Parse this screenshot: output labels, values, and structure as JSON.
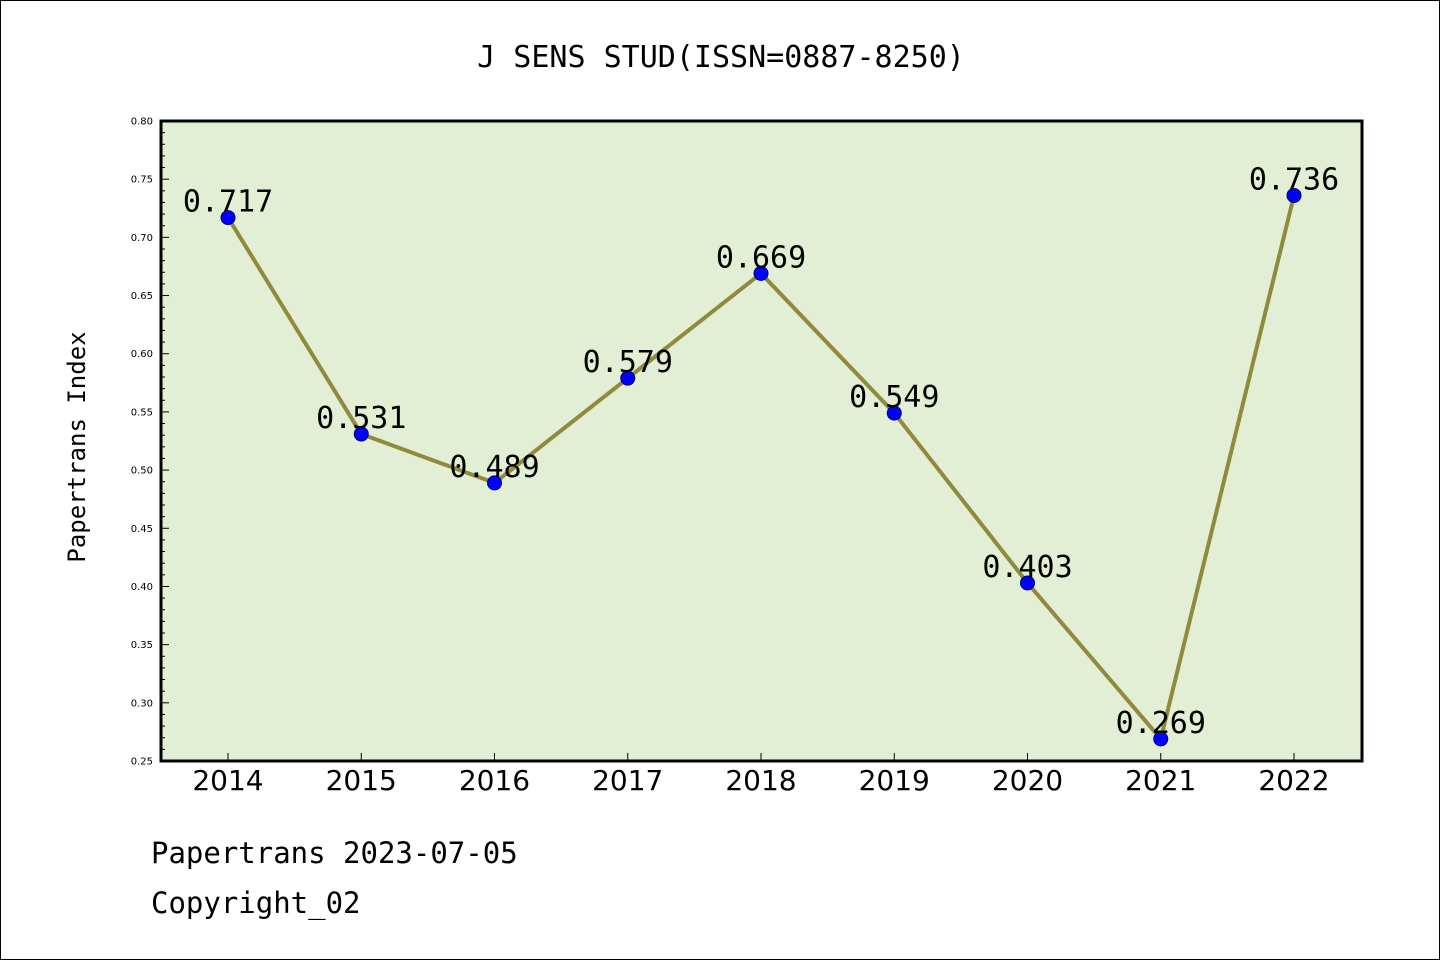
{
  "chart_data": {
    "type": "line",
    "title": "J SENS STUD(ISSN=0887-8250)",
    "xlabel": "",
    "ylabel": "Papertrans Index",
    "categories": [
      "2014",
      "2015",
      "2016",
      "2017",
      "2018",
      "2019",
      "2020",
      "2021",
      "2022"
    ],
    "series": [
      {
        "values": [
          0.717,
          0.531,
          0.489,
          0.579,
          0.669,
          0.549,
          0.403,
          0.269,
          0.736
        ],
        "labels": [
          "0.717",
          "0.531",
          "0.489",
          "0.579",
          "0.669",
          "0.549",
          "0.403",
          "0.269",
          "0.736"
        ]
      }
    ],
    "ylim": [
      0.25,
      0.8
    ],
    "yticks": [
      "0.25",
      "0.30",
      "0.35",
      "0.40",
      "0.45",
      "0.50",
      "0.55",
      "0.60",
      "0.65",
      "0.70",
      "0.75",
      "0.80"
    ],
    "grid": false,
    "colors": {
      "plot_background": "#e2efd5",
      "line": "#8f8a3c",
      "marker": "#0000ff"
    }
  },
  "footer": {
    "line1": "Papertrans 2023-07-05",
    "line2": "Copyright_02"
  }
}
